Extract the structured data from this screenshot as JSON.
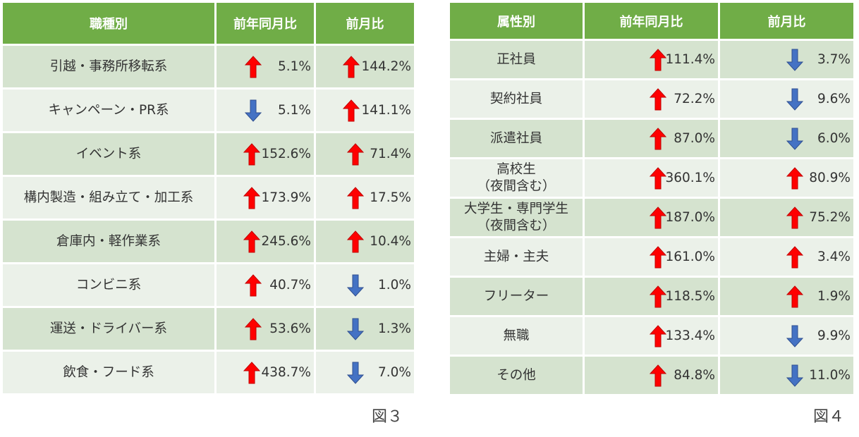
{
  "colors": {
    "header": "#70ad47",
    "row_odd": "#d5e3cf",
    "row_even": "#ebf1e9",
    "up": "#ff0000",
    "down": "#4472c4"
  },
  "table3": {
    "headers": [
      "職種別",
      "前年同月比",
      "前月比"
    ],
    "rows": [
      {
        "name": "引越・事務所移転系",
        "yoy": "5.1%",
        "yoy_dir": "up",
        "mom": "144.2%",
        "mom_dir": "up"
      },
      {
        "name": "キャンペーン・PR系",
        "yoy": "5.1%",
        "yoy_dir": "down",
        "mom": "141.1%",
        "mom_dir": "up"
      },
      {
        "name": "イベント系",
        "yoy": "152.6%",
        "yoy_dir": "up",
        "mom": "71.4%",
        "mom_dir": "up"
      },
      {
        "name": "構内製造・組み立て・加工系",
        "yoy": "173.9%",
        "yoy_dir": "up",
        "mom": "17.5%",
        "mom_dir": "up"
      },
      {
        "name": "倉庫内・軽作業系",
        "yoy": "245.6%",
        "yoy_dir": "up",
        "mom": "10.4%",
        "mom_dir": "up"
      },
      {
        "name": "コンビニ系",
        "yoy": "40.7%",
        "yoy_dir": "up",
        "mom": "1.0%",
        "mom_dir": "down"
      },
      {
        "name": "運送・ドライバー系",
        "yoy": "53.6%",
        "yoy_dir": "up",
        "mom": "1.3%",
        "mom_dir": "down"
      },
      {
        "name": "飲食・フード系",
        "yoy": "438.7%",
        "yoy_dir": "up",
        "mom": "7.0%",
        "mom_dir": "down"
      }
    ],
    "caption": "図３"
  },
  "table4": {
    "headers": [
      "属性別",
      "前年同月比",
      "前月比"
    ],
    "rows": [
      {
        "name": "正社員",
        "yoy": "111.4%",
        "yoy_dir": "up",
        "mom": "3.7%",
        "mom_dir": "down"
      },
      {
        "name": "契約社員",
        "yoy": "72.2%",
        "yoy_dir": "up",
        "mom": "9.6%",
        "mom_dir": "down"
      },
      {
        "name": "派遣社員",
        "yoy": "87.0%",
        "yoy_dir": "up",
        "mom": "6.0%",
        "mom_dir": "down"
      },
      {
        "name": "高校生\n（夜間含む）",
        "yoy": "360.1%",
        "yoy_dir": "up",
        "mom": "80.9%",
        "mom_dir": "up"
      },
      {
        "name": "大学生・専門学生\n（夜間含む）",
        "yoy": "187.0%",
        "yoy_dir": "up",
        "mom": "75.2%",
        "mom_dir": "up"
      },
      {
        "name": "主婦・主夫",
        "yoy": "161.0%",
        "yoy_dir": "up",
        "mom": "3.4%",
        "mom_dir": "up"
      },
      {
        "name": "フリーター",
        "yoy": "118.5%",
        "yoy_dir": "up",
        "mom": "1.9%",
        "mom_dir": "up"
      },
      {
        "name": "無職",
        "yoy": "133.4%",
        "yoy_dir": "up",
        "mom": "9.9%",
        "mom_dir": "down"
      },
      {
        "name": "その他",
        "yoy": "84.8%",
        "yoy_dir": "up",
        "mom": "11.0%",
        "mom_dir": "down"
      }
    ],
    "caption": "図４"
  }
}
